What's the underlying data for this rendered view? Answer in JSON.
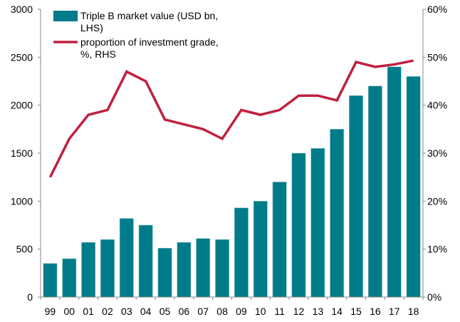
{
  "chart_data": {
    "type": "bar+line",
    "categories": [
      "99",
      "00",
      "01",
      "02",
      "03",
      "04",
      "05",
      "06",
      "07",
      "08",
      "09",
      "10",
      "11",
      "12",
      "13",
      "14",
      "15",
      "16",
      "17",
      "18"
    ],
    "series": [
      {
        "name": "Triple  B market value (USD bn, LHS)",
        "legend_lines": [
          "Triple  B market value (USD bn,",
          "LHS)"
        ],
        "type": "bar",
        "axis": "left",
        "color": "#007b8a",
        "values": [
          350,
          400,
          570,
          600,
          820,
          750,
          510,
          570,
          610,
          600,
          930,
          1000,
          1200,
          1500,
          1550,
          1750,
          2100,
          2200,
          2400,
          2300
        ]
      },
      {
        "name": "proportion of investment grade, %, RHS",
        "legend_lines": [
          "proportion of investment grade,",
          "%, RHS"
        ],
        "type": "line",
        "axis": "right",
        "color": "#c0203f",
        "values": [
          25,
          33,
          38,
          39,
          47,
          45,
          37,
          36,
          35,
          33,
          39,
          38,
          39,
          42,
          42,
          41,
          49,
          48,
          48.5,
          49.3
        ]
      }
    ],
    "left_axis": {
      "ylim": [
        0,
        3000
      ],
      "ticks": [
        "0",
        "500",
        "1000",
        "1500",
        "2000",
        "2500",
        "3000"
      ]
    },
    "right_axis": {
      "ylim": [
        0,
        60
      ],
      "ticks": [
        "0%",
        "10%",
        "20%",
        "30%",
        "40%",
        "50%",
        "60%"
      ]
    },
    "grid": false,
    "legend_placement": "top-left"
  }
}
